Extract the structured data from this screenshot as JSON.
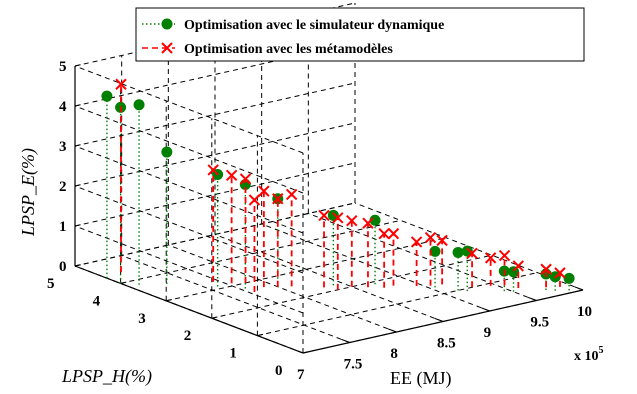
{
  "chart_data": {
    "type": "scatter",
    "title": "",
    "xlabel": "EE (MJ)",
    "x_multiplier": "x 10",
    "x_multiplier_exp": "5",
    "ylabel": "LPSP_H(%)",
    "zlabel": "LPSP_E(%)",
    "xlim": [
      700000,
      1000000
    ],
    "ylim": [
      0,
      5
    ],
    "zlim": [
      0,
      5
    ],
    "x_ticks": [
      "7",
      "7.5",
      "8",
      "8.5",
      "9",
      "9.5",
      "10"
    ],
    "y_ticks": [
      "0",
      "1",
      "2",
      "3",
      "4",
      "5"
    ],
    "z_ticks": [
      "0",
      "1",
      "2",
      "3",
      "4",
      "5"
    ],
    "grid": true,
    "legend_position": "top",
    "series": [
      {
        "name": "Optimisation avec le simulateur dynamique",
        "color": "#008000",
        "marker": "circle",
        "stem_style": "dotted",
        "points": [
          {
            "x": 700000,
            "y": 4.3,
            "z": 4.55
          },
          {
            "x": 700000,
            "y": 4.0,
            "z": 4.4
          },
          {
            "x": 710000,
            "y": 3.8,
            "z": 4.5
          },
          {
            "x": 730000,
            "y": 3.6,
            "z": 3.3
          },
          {
            "x": 760000,
            "y": 3.1,
            "z": 2.8
          },
          {
            "x": 775000,
            "y": 2.8,
            "z": 2.6
          },
          {
            "x": 800000,
            "y": 2.6,
            "z": 2.2
          },
          {
            "x": 840000,
            "y": 2.2,
            "z": 1.75
          },
          {
            "x": 870000,
            "y": 1.9,
            "z": 1.6
          },
          {
            "x": 905000,
            "y": 1.3,
            "z": 0.9
          },
          {
            "x": 915000,
            "y": 1.0,
            "z": 0.95
          },
          {
            "x": 920000,
            "y": 0.9,
            "z": 1.0
          },
          {
            "x": 945000,
            "y": 0.6,
            "z": 0.5
          },
          {
            "x": 950000,
            "y": 0.5,
            "z": 0.5
          },
          {
            "x": 975000,
            "y": 0.3,
            "z": 0.4
          },
          {
            "x": 980000,
            "y": 0.2,
            "z": 0.35
          },
          {
            "x": 990000,
            "y": 0.1,
            "z": 0.3
          }
        ]
      },
      {
        "name": "Optimisation avec les métamodèles",
        "color": "#ff0000",
        "marker": "x",
        "stem_style": "dashed",
        "points": [
          {
            "x": 720000,
            "y": 4.4,
            "z": 4.7
          },
          {
            "x": 765000,
            "y": 3.3,
            "z": 2.8
          },
          {
            "x": 775000,
            "y": 3.1,
            "z": 2.7
          },
          {
            "x": 785000,
            "y": 3.0,
            "z": 2.6
          },
          {
            "x": 775000,
            "y": 2.6,
            "z": 2.3
          },
          {
            "x": 790000,
            "y": 2.7,
            "z": 2.4
          },
          {
            "x": 800000,
            "y": 2.6,
            "z": 2.2
          },
          {
            "x": 810000,
            "y": 2.5,
            "z": 2.3
          },
          {
            "x": 830000,
            "y": 2.2,
            "z": 1.8
          },
          {
            "x": 835000,
            "y": 2.0,
            "z": 1.8
          },
          {
            "x": 850000,
            "y": 2.0,
            "z": 1.65
          },
          {
            "x": 860000,
            "y": 1.85,
            "z": 1.6
          },
          {
            "x": 870000,
            "y": 1.7,
            "z": 1.35
          },
          {
            "x": 880000,
            "y": 1.7,
            "z": 1.3
          },
          {
            "x": 895000,
            "y": 1.5,
            "z": 1.1
          },
          {
            "x": 905000,
            "y": 1.4,
            "z": 1.2
          },
          {
            "x": 915000,
            "y": 1.35,
            "z": 1.1
          },
          {
            "x": 930000,
            "y": 1.0,
            "z": 0.85
          },
          {
            "x": 945000,
            "y": 0.9,
            "z": 0.7
          },
          {
            "x": 955000,
            "y": 0.8,
            "z": 0.75
          },
          {
            "x": 960000,
            "y": 0.6,
            "z": 0.55
          },
          {
            "x": 980000,
            "y": 0.4,
            "z": 0.45
          },
          {
            "x": 990000,
            "y": 0.3,
            "z": 0.35
          }
        ]
      }
    ]
  }
}
